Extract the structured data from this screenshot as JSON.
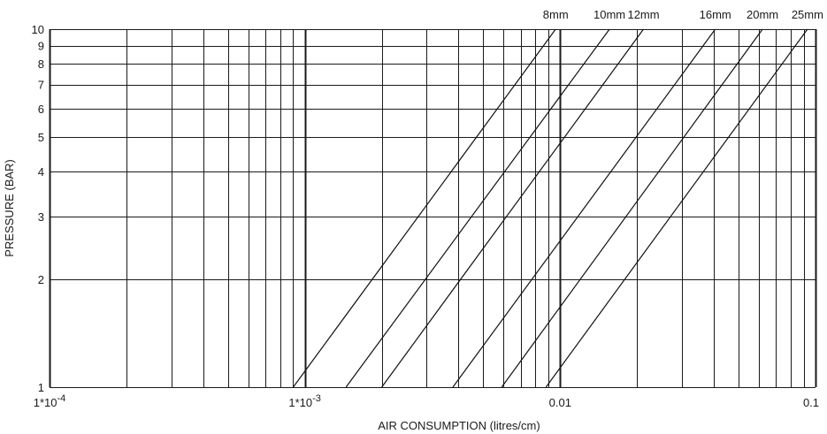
{
  "chart_data": {
    "type": "line",
    "xscale": "log",
    "yscale": "log",
    "xlim": [
      0.0001,
      0.1
    ],
    "ylim": [
      1,
      10
    ],
    "grid": true,
    "xlabel": "AIR CONSUMPTION (litres/cm)",
    "ylabel": "PRESSURE (BAR)",
    "x_tick_labels": [
      {
        "value": 0.0001,
        "label": "1*10",
        "exp": "-4"
      },
      {
        "value": 0.001,
        "label": "1*10",
        "exp": "-3"
      },
      {
        "value": 0.01,
        "label": "0.01",
        "exp": ""
      },
      {
        "value": 0.1,
        "label": "0.1",
        "exp": ""
      }
    ],
    "y_tick_labels": [
      {
        "value": 1,
        "label": "1"
      },
      {
        "value": 2,
        "label": "2"
      },
      {
        "value": 3,
        "label": "3"
      },
      {
        "value": 4,
        "label": "4"
      },
      {
        "value": 5,
        "label": "5"
      },
      {
        "value": 6,
        "label": "6"
      },
      {
        "value": 7,
        "label": "7"
      },
      {
        "value": 8,
        "label": "8"
      },
      {
        "value": 9,
        "label": "9"
      },
      {
        "value": 10,
        "label": "10"
      }
    ],
    "series": [
      {
        "name": "8mm",
        "x": [
          0.0009,
          0.0096
        ],
        "y": [
          1,
          10
        ]
      },
      {
        "name": "10mm",
        "x": [
          0.00145,
          0.0156
        ],
        "y": [
          1,
          10
        ]
      },
      {
        "name": "12mm",
        "x": [
          0.002,
          0.0212
        ],
        "y": [
          1,
          10
        ]
      },
      {
        "name": "16mm",
        "x": [
          0.0038,
          0.0405
        ],
        "y": [
          1,
          10
        ]
      },
      {
        "name": "20mm",
        "x": [
          0.0059,
          0.062
        ],
        "y": [
          1,
          10
        ]
      },
      {
        "name": "25mm",
        "x": [
          0.0088,
          0.093
        ],
        "y": [
          1,
          10
        ]
      }
    ]
  }
}
